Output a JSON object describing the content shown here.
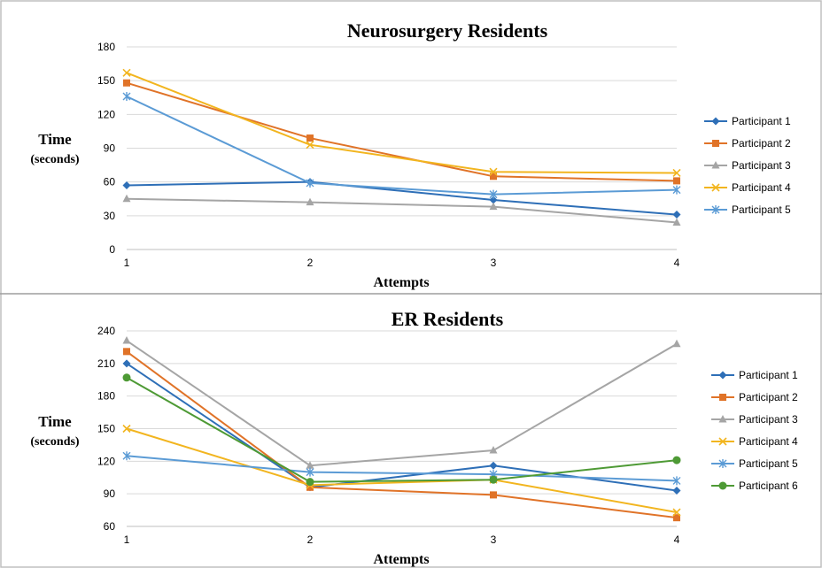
{
  "chart_data": [
    {
      "type": "line",
      "title": "Neurosurgery Residents",
      "xlabel": "Attempts",
      "ylabel": "Time",
      "ylabel_sub": "(seconds)",
      "x": [
        1,
        2,
        3,
        4
      ],
      "ylim": [
        0,
        180
      ],
      "yticks": [
        0,
        30,
        60,
        90,
        120,
        150,
        180
      ],
      "grid": true,
      "legend_position": "right",
      "series": [
        {
          "name": "Participant 1",
          "values": [
            57,
            60,
            44,
            31
          ],
          "color": "#2e6fb7",
          "marker": "diamond"
        },
        {
          "name": "Participant 2",
          "values": [
            148,
            99,
            65,
            61
          ],
          "color": "#e07328",
          "marker": "square"
        },
        {
          "name": "Participant 3",
          "values": [
            45,
            42,
            38,
            24
          ],
          "color": "#a5a5a5",
          "marker": "triangle"
        },
        {
          "name": "Participant 4",
          "values": [
            157,
            93,
            69,
            68
          ],
          "color": "#f2b51f",
          "marker": "x"
        },
        {
          "name": "Participant 5",
          "values": [
            136,
            59,
            49,
            53
          ],
          "color": "#5b9bd5",
          "marker": "star"
        }
      ]
    },
    {
      "type": "line",
      "title": "ER Residents",
      "xlabel": "Attempts",
      "ylabel": "Time",
      "ylabel_sub": "(seconds)",
      "x": [
        1,
        2,
        3,
        4
      ],
      "ylim": [
        60,
        240
      ],
      "yticks": [
        60,
        90,
        120,
        150,
        180,
        210,
        240
      ],
      "grid": true,
      "legend_position": "right",
      "series": [
        {
          "name": "Participant 1",
          "values": [
            210,
            96,
            116,
            93
          ],
          "color": "#2e6fb7",
          "marker": "diamond"
        },
        {
          "name": "Participant 2",
          "values": [
            221,
            96,
            89,
            68
          ],
          "color": "#e07328",
          "marker": "square"
        },
        {
          "name": "Participant 3",
          "values": [
            231,
            116,
            130,
            228
          ],
          "color": "#a5a5a5",
          "marker": "triangle"
        },
        {
          "name": "Participant 4",
          "values": [
            150,
            98,
            103,
            73
          ],
          "color": "#f2b51f",
          "marker": "x"
        },
        {
          "name": "Participant 5",
          "values": [
            125,
            110,
            108,
            102
          ],
          "color": "#5b9bd5",
          "marker": "star"
        },
        {
          "name": "Participant 6",
          "values": [
            197,
            101,
            103,
            121
          ],
          "color": "#4e9a35",
          "marker": "circle"
        }
      ]
    }
  ]
}
